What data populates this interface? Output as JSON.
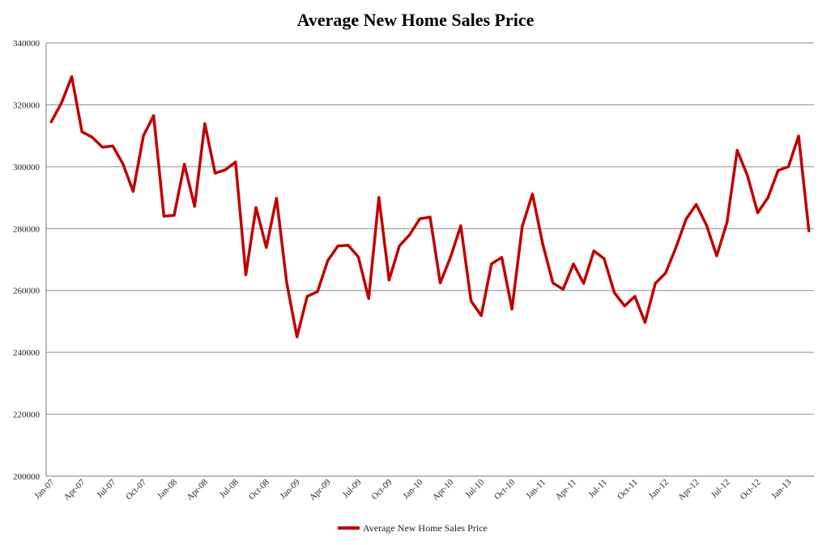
{
  "chart_data": {
    "type": "line",
    "title": "Average New Home Sales Price",
    "xlabel": "",
    "ylabel": "",
    "ylim": [
      200000,
      340000
    ],
    "yticks": [
      "200000",
      "220000",
      "240000",
      "260000",
      "280000",
      "300000",
      "320000",
      "340000"
    ],
    "xtick_labels": [
      "Jan-07",
      "Apr-07",
      "Jul-07",
      "Oct-07",
      "Jan-08",
      "Apr-08",
      "Jul-08",
      "Oct-08",
      "Jan-09",
      "Apr-09",
      "Jul-09",
      "Oct-09",
      "Jan-10",
      "Apr-10",
      "Jul-10",
      "Oct-10",
      "Jan-11",
      "Apr-11",
      "Jul-11",
      "Oct-11",
      "Jan-12",
      "Apr-12",
      "Jul-12",
      "Oct-12",
      "Jan-13"
    ],
    "grid": true,
    "legend_position": "bottom",
    "series": [
      {
        "name": "Average New Home Sales Price",
        "color": "#c00000",
        "x": [
          "Jan-07",
          "Feb-07",
          "Mar-07",
          "Apr-07",
          "May-07",
          "Jun-07",
          "Jul-07",
          "Aug-07",
          "Sep-07",
          "Oct-07",
          "Nov-07",
          "Dec-07",
          "Jan-08",
          "Feb-08",
          "Mar-08",
          "Apr-08",
          "May-08",
          "Jun-08",
          "Jul-08",
          "Aug-08",
          "Sep-08",
          "Oct-08",
          "Nov-08",
          "Dec-08",
          "Jan-09",
          "Feb-09",
          "Mar-09",
          "Apr-09",
          "May-09",
          "Jun-09",
          "Jul-09",
          "Aug-09",
          "Sep-09",
          "Oct-09",
          "Nov-09",
          "Dec-09",
          "Jan-10",
          "Feb-10",
          "Mar-10",
          "Apr-10",
          "May-10",
          "Jun-10",
          "Jul-10",
          "Aug-10",
          "Sep-10",
          "Oct-10",
          "Nov-10",
          "Dec-10",
          "Jan-11",
          "Feb-11",
          "Mar-11",
          "Apr-11",
          "May-11",
          "Jun-11",
          "Jul-11",
          "Aug-11",
          "Sep-11",
          "Oct-11",
          "Nov-11",
          "Dec-11",
          "Jan-12",
          "Feb-12",
          "Mar-12",
          "Apr-12",
          "May-12",
          "Jun-12",
          "Jul-12",
          "Aug-12",
          "Sep-12",
          "Oct-12",
          "Nov-12",
          "Dec-12",
          "Jan-13",
          "Feb-13",
          "Mar-13"
        ],
        "values": [
          314500,
          320700,
          329100,
          311300,
          309500,
          306300,
          306700,
          300900,
          292000,
          310000,
          316500,
          284000,
          284300,
          300800,
          287200,
          313900,
          297900,
          299000,
          301500,
          265100,
          286800,
          273900,
          289800,
          262500,
          245000,
          258100,
          259600,
          269600,
          274400,
          274600,
          270800,
          257400,
          290100,
          263400,
          274400,
          278000,
          283200,
          283700,
          262400,
          270800,
          280900,
          256600,
          251900,
          268600,
          270700,
          254000,
          280700,
          291200,
          275100,
          262400,
          260400,
          268600,
          262300,
          272800,
          270300,
          259300,
          255000,
          258100,
          249700,
          262300,
          265600,
          273800,
          283000,
          287800,
          281100,
          271200,
          282000,
          305300,
          297200,
          285100,
          290000,
          298800,
          300000,
          309900,
          279300
        ]
      }
    ]
  }
}
